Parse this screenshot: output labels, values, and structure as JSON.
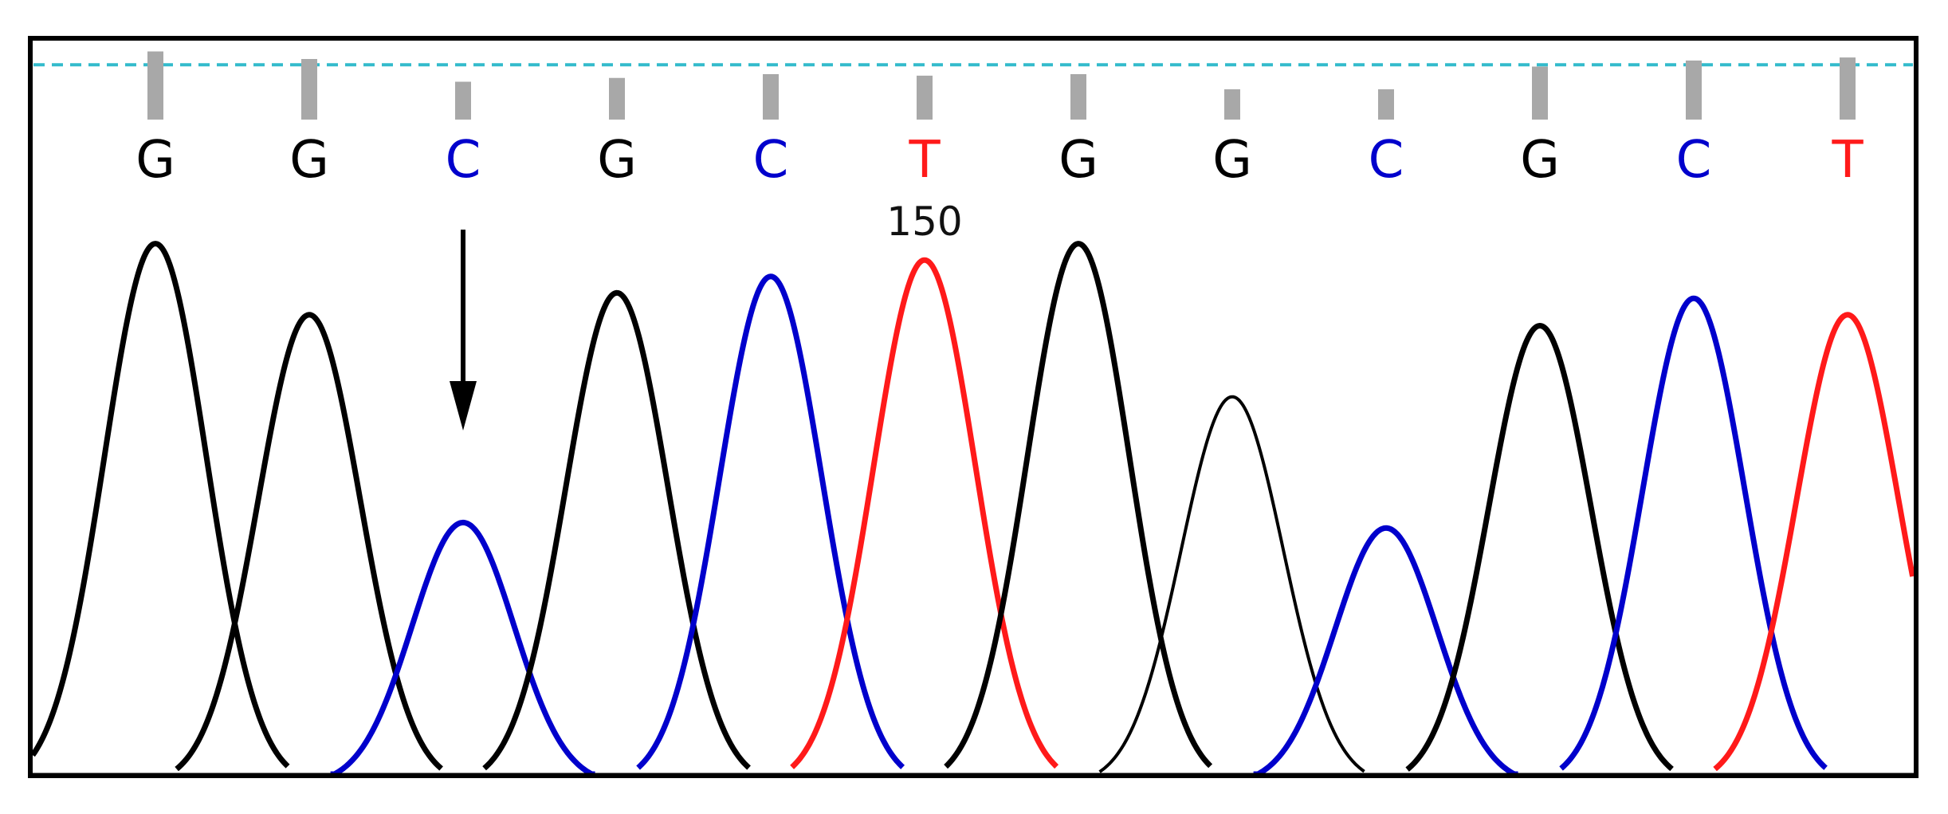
{
  "chart_data": {
    "type": "line",
    "title": "",
    "xlabel": "",
    "ylabel": "",
    "ylim": [
      0,
      1
    ],
    "colors": {
      "G": "#000000",
      "C": "#0000cc",
      "T": "#ff1a1a",
      "threshold": "#33bbcc",
      "quality_bar": "#a8a8a8",
      "frame": "#000000"
    },
    "threshold_level": 0.85,
    "position_label": "150",
    "position_label_index": 5,
    "annotations": [
      {
        "type": "arrow",
        "peak_index": 2,
        "direction": "down"
      }
    ],
    "peaks": [
      {
        "base": "G",
        "height": 0.99,
        "quality": 0.9
      },
      {
        "base": "G",
        "height": 0.86,
        "quality": 0.8
      },
      {
        "base": "C",
        "height": 0.48,
        "quality": 0.5
      },
      {
        "base": "G",
        "height": 0.9,
        "quality": 0.55
      },
      {
        "base": "C",
        "height": 0.93,
        "quality": 0.6
      },
      {
        "base": "T",
        "height": 0.96,
        "quality": 0.58
      },
      {
        "base": "G",
        "height": 0.99,
        "quality": 0.6
      },
      {
        "base": "G",
        "height": 0.71,
        "quality": 0.4
      },
      {
        "base": "C",
        "height": 0.47,
        "quality": 0.4
      },
      {
        "base": "G",
        "height": 0.84,
        "quality": 0.7
      },
      {
        "base": "C",
        "height": 0.89,
        "quality": 0.78
      },
      {
        "base": "T",
        "height": 0.86,
        "quality": 0.82
      }
    ]
  }
}
